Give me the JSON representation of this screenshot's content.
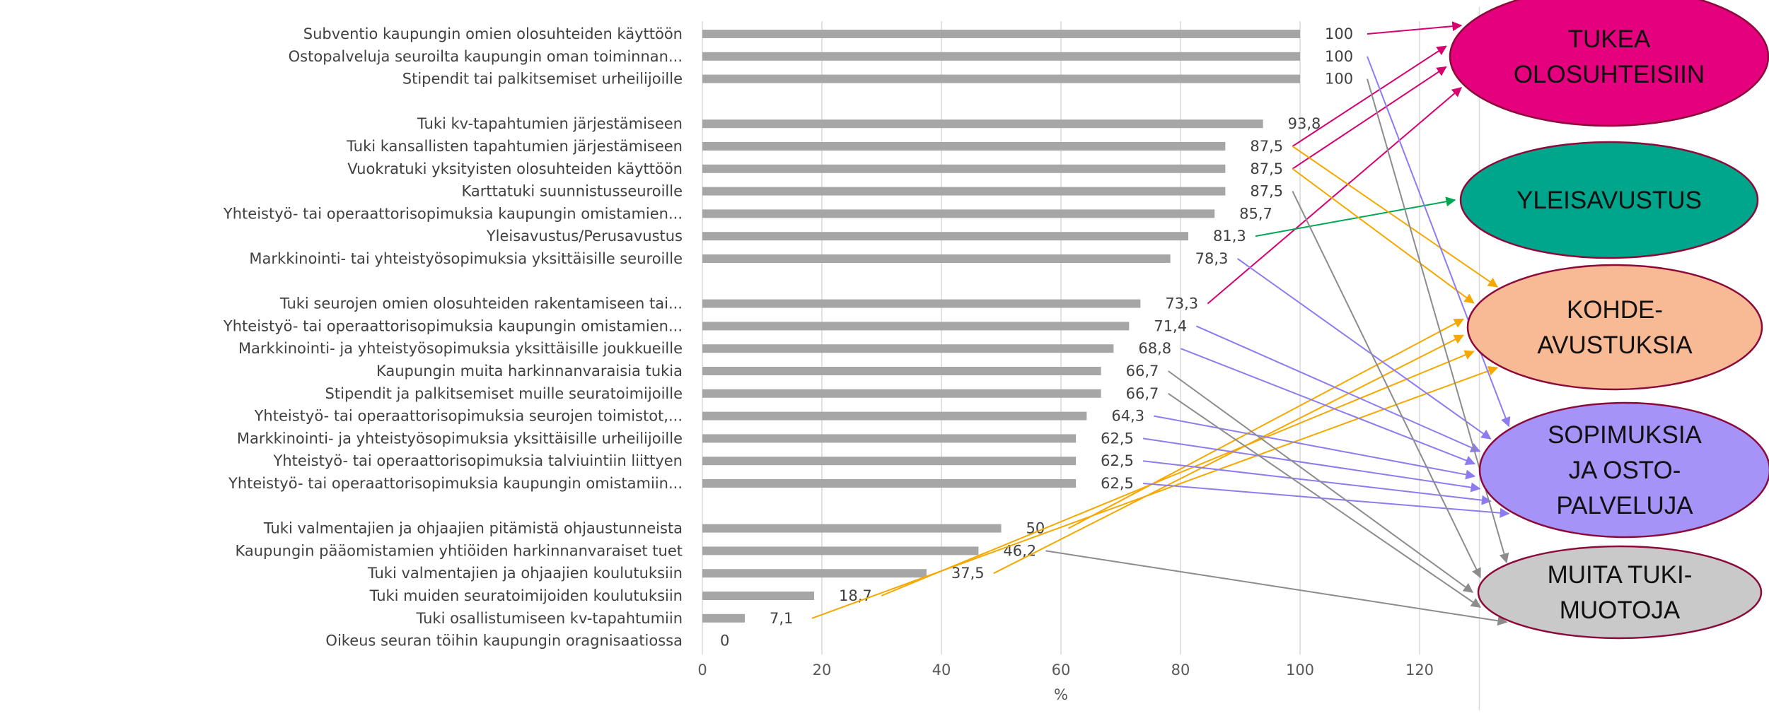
{
  "chart_data": {
    "type": "bar",
    "orientation": "horizontal",
    "xlabel": "%",
    "xlim": [
      0,
      130
    ],
    "xticks": [
      0,
      20,
      40,
      60,
      80,
      100,
      120
    ],
    "grid": true,
    "categories": [
      "Subventio kaupungin omien olosuhteiden käyttöön",
      "Ostopalveluja seuroilta kaupungin oman toiminnan...",
      "Stipendit tai palkitsemiset urheilijoille",
      "Tuki kv-tapahtumien järjestämiseen",
      "Tuki kansallisten tapahtumien järjestämiseen",
      "Vuokratuki yksityisten olosuhteiden käyttöön",
      "Karttatuki suunnistusseuroille",
      "Yhteistyö- tai operaattorisopimuksia kaupungin omistamien...",
      "Yleisavustus/Perusavustus",
      "Markkinointi- tai yhteistyösopimuksia yksittäisille seuroille",
      "Tuki seurojen omien olosuhteiden rakentamiseen tai...",
      "Yhteistyö- tai operaattorisopimuksia kaupungin omistamien...",
      "Markkinointi- ja yhteistyösopimuksia yksittäisille joukkueille",
      "Kaupungin muita harkinnanvaraisia tukia",
      "Stipendit ja palkitsemiset muille seuratoimijoille",
      "Yhteistyö- tai operaattorisopimuksia seurojen toimistot,...",
      "Markkinointi- ja yhteistyösopimuksia yksittäisille urheilijoille",
      "Yhteistyö- tai operaattorisopimuksia talviuintiin liittyen",
      "Yhteistyö- tai operaattorisopimuksia kaupungin omistamiin...",
      "Tuki valmentajien ja ohjaajien pitämistä ohjaustunneista",
      "Kaupungin pääomistamien yhtiöiden harkinnanvaraiset tuet",
      "Tuki valmentajien ja ohjaajien koulutuksiin",
      "Tuki muiden seuratoimijoiden koulutuksiin",
      "Tuki osallistumiseen kv-tapahtumiin",
      "Oikeus seuran töihin kaupungin oragnisaatiossa"
    ],
    "values": [
      100,
      100,
      100,
      93.8,
      87.5,
      87.5,
      87.5,
      85.7,
      81.3,
      78.3,
      73.3,
      71.4,
      68.8,
      66.7,
      66.7,
      64.3,
      62.5,
      62.5,
      62.5,
      50,
      46.2,
      37.5,
      18.7,
      7.1,
      0
    ],
    "value_labels": [
      "100",
      "100",
      "100",
      "93,8",
      "87,5",
      "87,5",
      "87,5",
      "85,7",
      "81,3",
      "78,3",
      "73,3",
      "71,4",
      "68,8",
      "66,7",
      "66,7",
      "64,3",
      "62,5",
      "62,5",
      "62,5",
      "50",
      "46,2",
      "37,5",
      "18,7",
      "7,1",
      "0"
    ],
    "groups": [
      [
        0,
        1,
        2
      ],
      [
        3,
        4,
        5,
        6,
        7,
        8,
        9
      ],
      [
        10,
        11,
        12,
        13,
        14,
        15,
        16,
        17,
        18
      ],
      [
        19,
        20,
        21,
        22,
        23,
        24
      ]
    ],
    "bar_color": "#a6a6a6",
    "annotations": {
      "ellipses": [
        {
          "key": "tukea",
          "lines": [
            "TUKEA",
            "OLOSUHTEISIIN"
          ],
          "fill": "#e5007e",
          "text_color": "#111111"
        },
        {
          "key": "yleis",
          "lines": [
            "YLEISAVUSTUS"
          ],
          "fill": "#00a68c",
          "text_color": "#111111"
        },
        {
          "key": "kohde",
          "lines": [
            "KOHDE-",
            "AVUSTUKSIA"
          ],
          "fill": "#f8b995",
          "text_color": "#111111"
        },
        {
          "key": "sopim",
          "lines": [
            "SOPIMUKSIA",
            "JA OSTO-",
            "PALVELUJA"
          ],
          "fill": "#a593f7",
          "text_color": "#111111"
        },
        {
          "key": "muita",
          "lines": [
            "MUITA TUKI-",
            "MUOTOJA"
          ],
          "fill": "#c9c9c9",
          "text_color": "#111111"
        }
      ],
      "arrow_colors": {
        "tukea": "#d6006f",
        "yleis": "#00a650",
        "kohde": "#f5a800",
        "sopim": "#8c7cf0",
        "muita": "#8c8c8c"
      },
      "arrows": [
        {
          "bar": 0,
          "target": "tukea"
        },
        {
          "bar": 4,
          "target": "tukea"
        },
        {
          "bar": 5,
          "target": "tukea"
        },
        {
          "bar": 10,
          "target": "tukea"
        },
        {
          "bar": 8,
          "target": "yleis"
        },
        {
          "bar": 4,
          "target": "kohde"
        },
        {
          "bar": 5,
          "target": "kohde"
        },
        {
          "bar": 19,
          "target": "kohde"
        },
        {
          "bar": 21,
          "target": "kohde"
        },
        {
          "bar": 22,
          "target": "kohde"
        },
        {
          "bar": 23,
          "target": "kohde"
        },
        {
          "bar": 1,
          "target": "sopim"
        },
        {
          "bar": 9,
          "target": "sopim"
        },
        {
          "bar": 11,
          "target": "sopim"
        },
        {
          "bar": 12,
          "target": "sopim"
        },
        {
          "bar": 15,
          "target": "sopim"
        },
        {
          "bar": 16,
          "target": "sopim"
        },
        {
          "bar": 17,
          "target": "sopim"
        },
        {
          "bar": 18,
          "target": "sopim"
        },
        {
          "bar": 2,
          "target": "muita"
        },
        {
          "bar": 6,
          "target": "muita"
        },
        {
          "bar": 13,
          "target": "muita"
        },
        {
          "bar": 14,
          "target": "muita"
        },
        {
          "bar": 20,
          "target": "muita"
        }
      ]
    }
  }
}
